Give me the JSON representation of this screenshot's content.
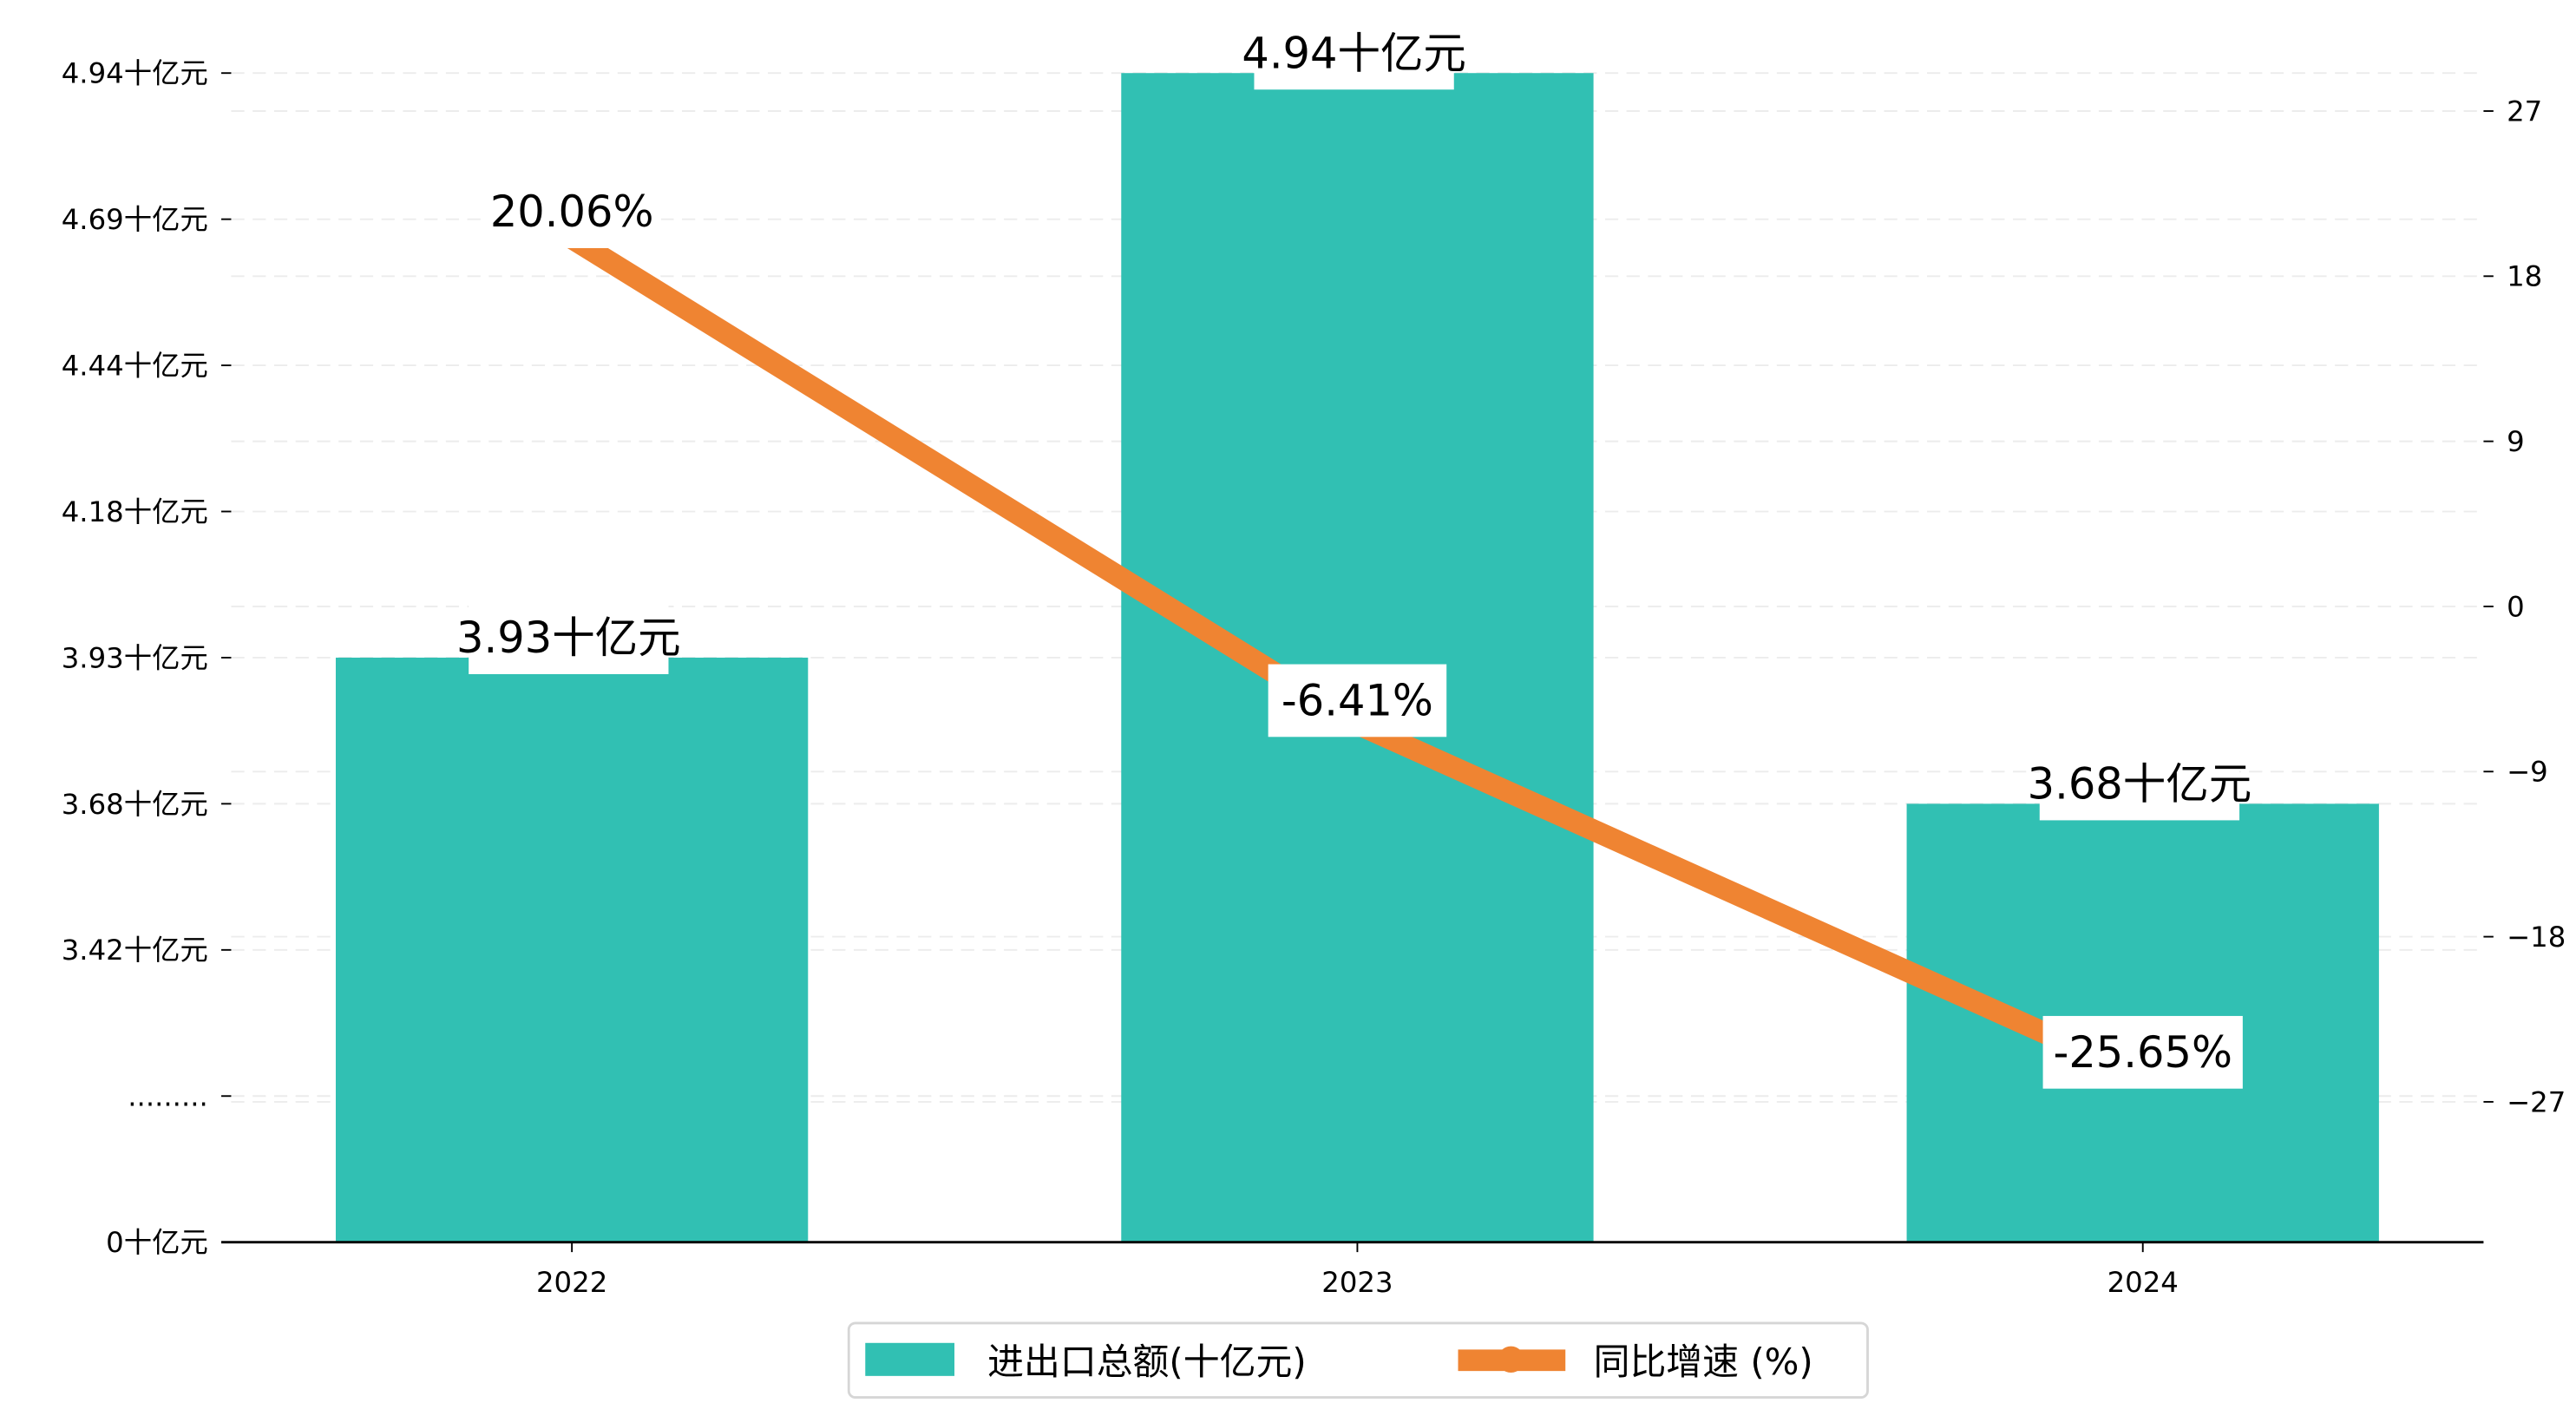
{
  "chart_data": {
    "type": "bar+line",
    "categories": [
      "2022",
      "2023",
      "2024"
    ],
    "series": [
      {
        "name": "进出口总额(十亿元)",
        "type": "bar",
        "axis": "left",
        "values": [
          3.93,
          4.94,
          3.68
        ],
        "labels": [
          "3.93十亿元",
          "4.94十亿元",
          "3.68十亿元"
        ],
        "color": "#31c0b3"
      },
      {
        "name": "同比增速 (%)",
        "type": "line",
        "axis": "right",
        "values": [
          20.06,
          -6.41,
          -25.65
        ],
        "labels": [
          "20.06%",
          "-6.41%",
          "-25.65%"
        ],
        "color": "#ef8432"
      }
    ],
    "left_axis": {
      "ticks": [
        {
          "value": 0,
          "label": "0十亿元"
        },
        {
          "value": 3.17,
          "label": "........."
        },
        {
          "value": 3.42,
          "label": "3.42十亿元"
        },
        {
          "value": 3.68,
          "label": "3.68十亿元"
        },
        {
          "value": 3.93,
          "label": "3.93十亿元"
        },
        {
          "value": 4.18,
          "label": "4.18十亿元"
        },
        {
          "value": 4.44,
          "label": "4.44十亿元"
        },
        {
          "value": 4.69,
          "label": "4.69十亿元"
        },
        {
          "value": 4.94,
          "label": "4.94十亿元"
        }
      ],
      "broken": true
    },
    "right_axis": {
      "ticks": [
        27,
        18,
        9,
        0,
        -9,
        -18,
        -27
      ],
      "ylim": [
        -34.2,
        38.7
      ]
    },
    "grid": true,
    "legend_position": "bottom-center"
  }
}
